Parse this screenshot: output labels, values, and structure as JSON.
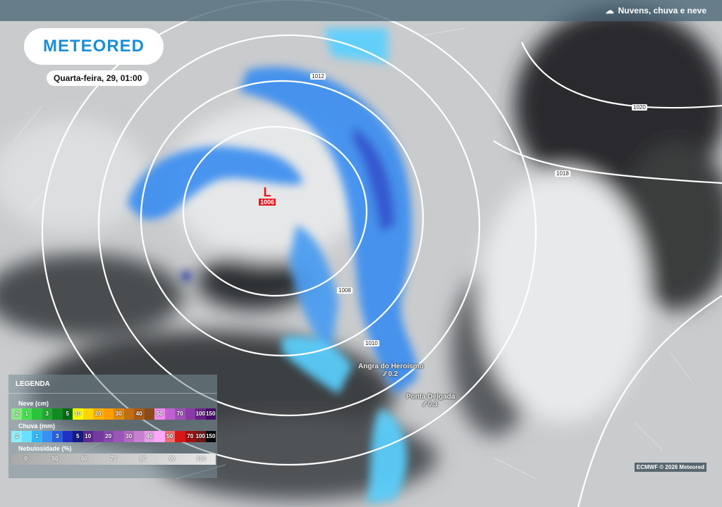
{
  "header": {
    "layer_title": "Nuvens, chuva e neve",
    "layer_icon": "cloud-rain-snow-icon"
  },
  "brand": {
    "logo": "METEORED",
    "color": "#1b8fd6"
  },
  "date": "Quarta-feira, 29, 01:00",
  "low_pressure": {
    "symbol": "L",
    "value": "1006",
    "color": "#e8141b"
  },
  "isobars": [
    "1012",
    "1020",
    "1018",
    "1008",
    "1010"
  ],
  "cities": [
    {
      "name": "Angra do Heroísmo",
      "value": "0.2"
    },
    {
      "name": "Ponta Delgada",
      "value": "0.3"
    }
  ],
  "legend": {
    "title": "LEGENDA",
    "snow": {
      "label": "Neve (cm)",
      "ticks": [
        ".2",
        "1",
        "",
        "3",
        "",
        "5",
        "10",
        "",
        "20",
        "",
        "30",
        "",
        "40",
        "",
        "50",
        "",
        "70",
        "",
        "100",
        "150"
      ],
      "colors": [
        "#8ee88a",
        "#45e04f",
        "#2cc23c",
        "#22aa30",
        "#118a22",
        "#066a12",
        "#ffff00",
        "#ffd400",
        "#ffb400",
        "#ff9e00",
        "#e08a10",
        "#c06e14",
        "#a85a18",
        "#8a4a1a",
        "#f08cf0",
        "#c060d0",
        "#a050b8",
        "#8a3aa8",
        "#6a208a",
        "#4a0a6a"
      ]
    },
    "rain": {
      "label": "Chuva (mm)",
      "ticks": [
        ".2",
        "",
        "1",
        "",
        "3",
        "",
        "5",
        "10",
        "",
        "20",
        "",
        "30",
        "",
        "40",
        "",
        "50",
        "",
        "70",
        "100",
        "150"
      ],
      "colors": [
        "#8ef0ff",
        "#6ae0ff",
        "#30b8f8",
        "#3a90f0",
        "#2a60e0",
        "#2030c0",
        "#141a80",
        "#602a90",
        "#743aa0",
        "#8a48b0",
        "#9a56b8",
        "#b46ac4",
        "#c880d0",
        "#e4a0e8",
        "#ffa8f8",
        "#f07070",
        "#d81818",
        "#a01010",
        "#701818",
        "#080808"
      ]
    },
    "clouds": {
      "label": "Nebulosidade (%)",
      "ticks": [
        "0",
        "50",
        "60",
        "70",
        "80",
        "90",
        "100"
      ]
    }
  },
  "credit": "ECMWF © 2026 Meteored"
}
